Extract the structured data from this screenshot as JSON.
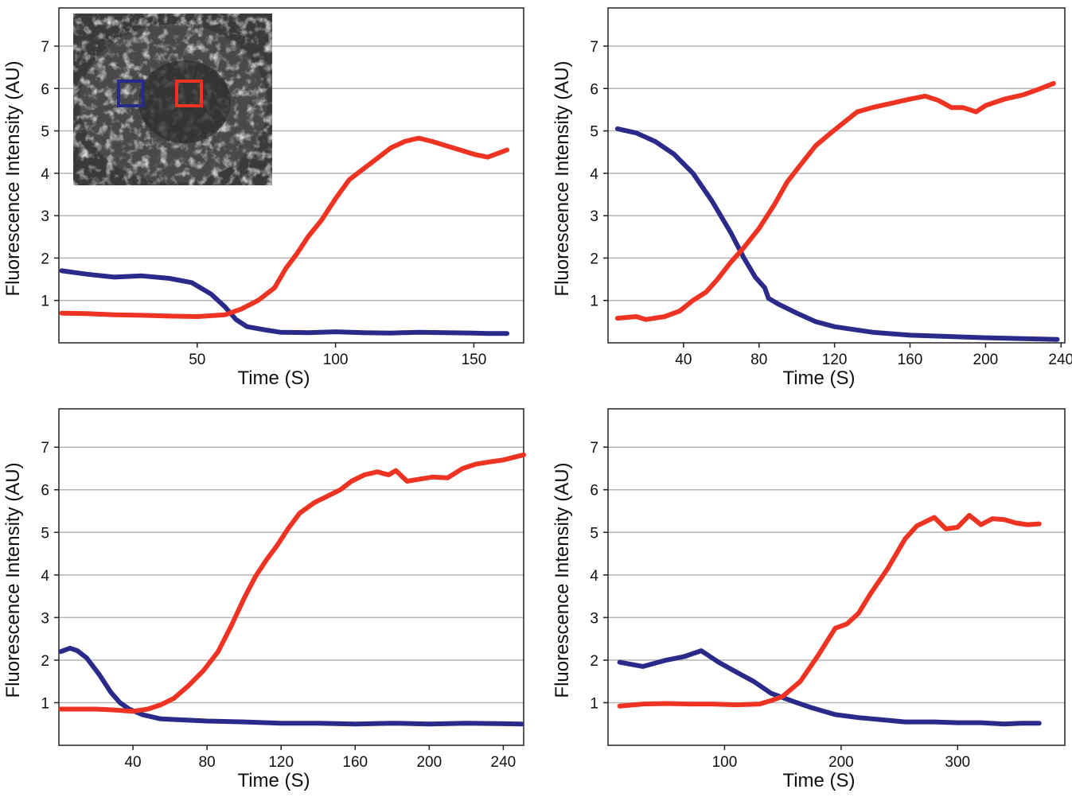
{
  "colors": {
    "blue": "#2a2a8a",
    "red": "#ee3323",
    "inset_bg": "#3a3a3a"
  },
  "inset": {
    "rois": [
      {
        "color": "blue"
      },
      {
        "color": "red"
      }
    ]
  },
  "chart_data": [
    {
      "type": "line",
      "xlabel": "Time (S)",
      "ylabel": "Fluorescence Intensity (AU)",
      "xlim": [
        0,
        168
      ],
      "ylim": [
        0,
        7.9
      ],
      "xticks": [
        50,
        100,
        150
      ],
      "yticks": [
        1,
        2,
        3,
        4,
        5,
        6,
        7
      ],
      "grid": true,
      "series": [
        {
          "color": "blue",
          "x": [
            1,
            10,
            20,
            30,
            40,
            48,
            55,
            60,
            64,
            68,
            75,
            80,
            90,
            100,
            110,
            120,
            130,
            140,
            150,
            155,
            162
          ],
          "y": [
            1.7,
            1.62,
            1.55,
            1.58,
            1.52,
            1.42,
            1.15,
            0.85,
            0.55,
            0.38,
            0.3,
            0.25,
            0.24,
            0.26,
            0.24,
            0.23,
            0.25,
            0.24,
            0.23,
            0.22,
            0.22
          ]
        },
        {
          "color": "red",
          "x": [
            1,
            10,
            20,
            30,
            40,
            50,
            60,
            66,
            72,
            78,
            82,
            86,
            90,
            95,
            100,
            105,
            110,
            115,
            120,
            125,
            130,
            135,
            140,
            145,
            150,
            155,
            162
          ],
          "y": [
            0.7,
            0.69,
            0.66,
            0.65,
            0.63,
            0.62,
            0.66,
            0.8,
            1.0,
            1.3,
            1.75,
            2.1,
            2.5,
            2.9,
            3.4,
            3.85,
            4.1,
            4.35,
            4.6,
            4.75,
            4.83,
            4.75,
            4.65,
            4.55,
            4.45,
            4.38,
            4.55
          ]
        }
      ]
    },
    {
      "type": "line",
      "xlabel": "Time (S)",
      "ylabel": "Fluorescence Intensity (AU)",
      "xlim": [
        0,
        242
      ],
      "ylim": [
        0,
        7.9
      ],
      "xticks": [
        40,
        80,
        120,
        160,
        200,
        240
      ],
      "yticks": [
        1,
        2,
        3,
        4,
        5,
        6,
        7
      ],
      "grid": true,
      "series": [
        {
          "color": "blue",
          "x": [
            5,
            15,
            25,
            35,
            45,
            55,
            65,
            72,
            78,
            83,
            85,
            90,
            100,
            110,
            120,
            140,
            160,
            180,
            200,
            220,
            238
          ],
          "y": [
            5.05,
            4.95,
            4.75,
            4.45,
            4.0,
            3.35,
            2.6,
            2.0,
            1.55,
            1.3,
            1.05,
            0.92,
            0.7,
            0.5,
            0.38,
            0.25,
            0.18,
            0.15,
            0.12,
            0.1,
            0.08
          ]
        },
        {
          "color": "red",
          "x": [
            5,
            15,
            20,
            30,
            38,
            45,
            52,
            58,
            65,
            72,
            80,
            88,
            95,
            102,
            110,
            118,
            125,
            132,
            140,
            150,
            160,
            168,
            175,
            182,
            188,
            195,
            200,
            210,
            220,
            228,
            236
          ],
          "y": [
            0.58,
            0.62,
            0.55,
            0.62,
            0.75,
            1.0,
            1.2,
            1.5,
            1.9,
            2.25,
            2.7,
            3.25,
            3.8,
            4.2,
            4.65,
            4.95,
            5.2,
            5.45,
            5.55,
            5.65,
            5.75,
            5.82,
            5.72,
            5.55,
            5.55,
            5.45,
            5.6,
            5.75,
            5.85,
            5.98,
            6.12
          ]
        }
      ]
    },
    {
      "type": "line",
      "xlabel": "Time (S)",
      "ylabel": "Fluorescence Intensity (AU)",
      "xlim": [
        0,
        251
      ],
      "ylim": [
        0,
        7.9
      ],
      "xticks": [
        40,
        80,
        120,
        160,
        200,
        240
      ],
      "yticks": [
        1,
        2,
        3,
        4,
        5,
        6,
        7
      ],
      "grid": true,
      "series": [
        {
          "color": "blue",
          "x": [
            1,
            6,
            10,
            15,
            22,
            28,
            33,
            38,
            45,
            55,
            65,
            80,
            100,
            120,
            140,
            160,
            180,
            200,
            220,
            250
          ],
          "y": [
            2.2,
            2.28,
            2.22,
            2.05,
            1.65,
            1.25,
            1.0,
            0.85,
            0.72,
            0.62,
            0.6,
            0.57,
            0.55,
            0.52,
            0.52,
            0.5,
            0.52,
            0.5,
            0.52,
            0.5
          ]
        },
        {
          "color": "red",
          "x": [
            1,
            10,
            20,
            30,
            40,
            48,
            55,
            62,
            70,
            78,
            86,
            93,
            100,
            106,
            112,
            118,
            124,
            130,
            138,
            145,
            152,
            158,
            165,
            172,
            178,
            182,
            188,
            195,
            202,
            210,
            218,
            225,
            232,
            240,
            251
          ],
          "y": [
            0.85,
            0.85,
            0.85,
            0.83,
            0.8,
            0.85,
            0.95,
            1.1,
            1.4,
            1.75,
            2.2,
            2.8,
            3.45,
            3.95,
            4.35,
            4.7,
            5.1,
            5.45,
            5.7,
            5.85,
            6.0,
            6.2,
            6.35,
            6.42,
            6.35,
            6.45,
            6.2,
            6.25,
            6.3,
            6.28,
            6.5,
            6.6,
            6.65,
            6.7,
            6.82
          ]
        }
      ]
    },
    {
      "type": "line",
      "xlabel": "Time (S)",
      "ylabel": "Fluorescence Intensity (AU)",
      "xlim": [
        0,
        392
      ],
      "ylim": [
        0,
        7.9
      ],
      "xticks": [
        100,
        200,
        300
      ],
      "yticks": [
        1,
        2,
        3,
        4,
        5,
        6,
        7
      ],
      "grid": true,
      "series": [
        {
          "color": "blue",
          "x": [
            10,
            30,
            50,
            65,
            80,
            95,
            110,
            125,
            140,
            150,
            160,
            175,
            195,
            215,
            235,
            255,
            280,
            300,
            320,
            340,
            355,
            370
          ],
          "y": [
            1.95,
            1.85,
            2.0,
            2.08,
            2.22,
            1.95,
            1.72,
            1.5,
            1.22,
            1.12,
            1.02,
            0.88,
            0.72,
            0.65,
            0.6,
            0.55,
            0.55,
            0.53,
            0.53,
            0.5,
            0.52,
            0.52
          ]
        },
        {
          "color": "red",
          "x": [
            10,
            30,
            50,
            70,
            90,
            110,
            130,
            140,
            150,
            165,
            180,
            195,
            205,
            215,
            225,
            240,
            255,
            265,
            280,
            290,
            300,
            310,
            320,
            330,
            340,
            350,
            360,
            370
          ],
          "y": [
            0.92,
            0.97,
            0.98,
            0.97,
            0.97,
            0.95,
            0.97,
            1.05,
            1.15,
            1.5,
            2.1,
            2.75,
            2.85,
            3.1,
            3.55,
            4.15,
            4.85,
            5.15,
            5.35,
            5.08,
            5.12,
            5.4,
            5.18,
            5.32,
            5.3,
            5.22,
            5.18,
            5.2
          ]
        }
      ]
    }
  ]
}
